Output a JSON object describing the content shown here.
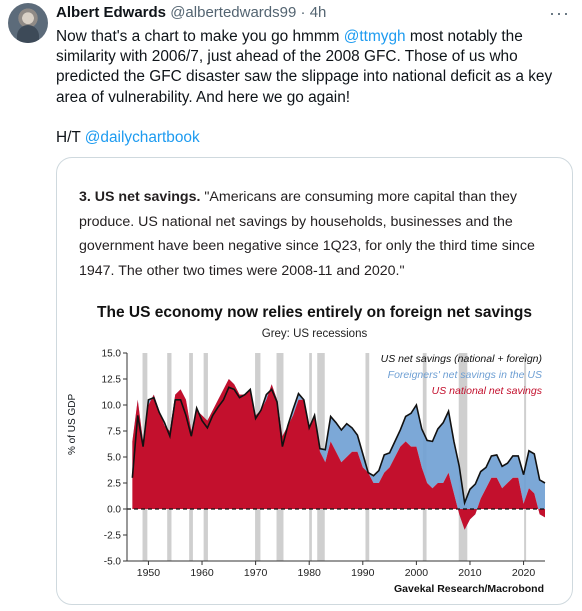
{
  "tweet": {
    "name": "Albert Edwards",
    "handle": "@albertedwards99",
    "separator": "·",
    "time": "4h",
    "more_icon": "more-icon",
    "text_before": "Now that's a chart to make you go hmmm ",
    "mention": "@ttmygh",
    "text_after": " most notably the similarity with 2006/7, just ahead of the 2008 GFC. Those of us who predicted the GFC disaster saw the slippage into national deficit as a key area of vulnerability. And here we go again!",
    "ht_prefix": "H/T ",
    "ht_mention": "@dailychartbook"
  },
  "card": {
    "caption_bold": "3. US net savings.",
    "caption_text": " \"Americans are consuming more capital than they produce. US national net savings by households, businesses and the government have been negative since 1Q23, for only the third time since 1947. The other two times were 2008-11 and 2020.\""
  },
  "chart_data": {
    "type": "area",
    "title": "The US economy now relies entirely on foreign net savings",
    "subtitle": "Grey: US recessions",
    "ylabel": "% of US GDP",
    "ylim": [
      -5,
      15
    ],
    "yticks": [
      "15.0",
      "12.5",
      "10.0",
      "7.5",
      "5.0",
      "2.5",
      "0.0",
      "-2.5",
      "-5.0"
    ],
    "xticks": [
      "1950",
      "1960",
      "1970",
      "1980",
      "1990",
      "2000",
      "2010",
      "2020"
    ],
    "xlim": [
      1946,
      2024
    ],
    "legend": [
      "US net savings (national + foreign)",
      "Foreigners' net savings in the US",
      "US national net savings"
    ],
    "colors": {
      "total": "#111111",
      "foreign": "#6e9fd3",
      "national": "#c3102d",
      "recession": "#cfcfcf"
    },
    "recessions": [
      [
        1948.9,
        1949.8
      ],
      [
        1953.5,
        1954.3
      ],
      [
        1957.6,
        1958.3
      ],
      [
        1960.3,
        1961.1
      ],
      [
        1969.9,
        1970.9
      ],
      [
        1973.9,
        1975.2
      ],
      [
        1980.0,
        1980.5
      ],
      [
        1981.5,
        1982.9
      ],
      [
        1990.5,
        1991.2
      ],
      [
        2001.2,
        2001.9
      ],
      [
        2007.9,
        2009.5
      ],
      [
        2020.1,
        2020.4
      ]
    ],
    "x": [
      1947,
      1948,
      1949,
      1950,
      1951,
      1952,
      1953,
      1954,
      1955,
      1956,
      1957,
      1958,
      1959,
      1960,
      1961,
      1962,
      1963,
      1964,
      1965,
      1966,
      1967,
      1968,
      1969,
      1970,
      1971,
      1972,
      1973,
      1974,
      1975,
      1976,
      1977,
      1978,
      1979,
      1980,
      1981,
      1982,
      1983,
      1984,
      1985,
      1986,
      1987,
      1988,
      1989,
      1990,
      1991,
      1992,
      1993,
      1994,
      1995,
      1996,
      1997,
      1998,
      1999,
      2000,
      2001,
      2002,
      2003,
      2004,
      2005,
      2006,
      2007,
      2008,
      2009,
      2010,
      2011,
      2012,
      2013,
      2014,
      2015,
      2016,
      2017,
      2018,
      2019,
      2020,
      2021,
      2022,
      2023,
      2024
    ],
    "national": [
      6.5,
      10.5,
      6.5,
      10.0,
      11.0,
      9.5,
      8.0,
      7.5,
      11.0,
      11.5,
      10.5,
      7.5,
      9.5,
      9.0,
      8.5,
      9.5,
      10.5,
      11.5,
      12.5,
      12.0,
      11.0,
      11.0,
      11.5,
      9.0,
      9.5,
      10.5,
      12.0,
      10.5,
      7.0,
      8.0,
      9.0,
      10.5,
      10.5,
      8.0,
      9.0,
      5.5,
      4.5,
      6.5,
      5.5,
      4.5,
      5.0,
      5.5,
      5.5,
      4.0,
      3.5,
      2.5,
      2.5,
      3.5,
      4.0,
      5.0,
      6.0,
      6.5,
      6.0,
      6.0,
      4.0,
      2.5,
      2.0,
      2.5,
      2.5,
      3.5,
      1.5,
      -0.5,
      -2.0,
      -1.0,
      -0.5,
      1.0,
      2.0,
      3.0,
      3.0,
      2.0,
      2.5,
      3.0,
      3.0,
      0.5,
      2.0,
      1.5,
      -0.5,
      -0.8
    ],
    "foreign": [
      -3.5,
      -1.5,
      -0.5,
      0.5,
      -0.3,
      -0.2,
      0.3,
      -0.5,
      -0.5,
      -1.0,
      -1.5,
      -0.5,
      0.2,
      -0.5,
      -0.7,
      -0.5,
      -0.7,
      -1.0,
      -0.8,
      -0.5,
      -0.3,
      0.0,
      0.0,
      -0.3,
      0.0,
      0.5,
      -0.5,
      -0.2,
      -1.0,
      0.0,
      0.6,
      0.6,
      0.0,
      -0.2,
      0.0,
      0.3,
      1.2,
      2.4,
      2.8,
      3.1,
      3.2,
      2.3,
      1.6,
      1.3,
      0.0,
      0.7,
      1.2,
      1.7,
      1.4,
      1.5,
      1.6,
      2.4,
      3.2,
      4.0,
      3.7,
      4.1,
      4.5,
      5.2,
      5.8,
      5.9,
      5.0,
      4.6,
      2.6,
      2.9,
      2.9,
      2.6,
      2.0,
      2.1,
      2.2,
      2.1,
      1.9,
      2.1,
      2.1,
      2.8,
      3.6,
      3.8,
      3.3,
      3.3
    ],
    "total": [
      3.0,
      9.0,
      6.0,
      10.5,
      10.7,
      9.3,
      8.3,
      7.0,
      10.5,
      10.5,
      9.0,
      7.0,
      9.7,
      8.5,
      7.8,
      9.0,
      9.8,
      10.5,
      11.7,
      11.5,
      10.7,
      11.0,
      11.5,
      8.7,
      9.5,
      11.0,
      11.5,
      10.3,
      6.0,
      8.0,
      9.6,
      11.1,
      10.5,
      7.8,
      9.0,
      5.8,
      5.7,
      8.9,
      8.3,
      7.6,
      8.2,
      7.8,
      7.1,
      5.3,
      3.5,
      3.2,
      3.7,
      5.2,
      5.4,
      6.5,
      7.6,
      8.9,
      9.2,
      10.0,
      7.7,
      6.6,
      6.5,
      7.7,
      8.3,
      9.4,
      6.5,
      4.1,
      0.6,
      1.9,
      2.4,
      3.6,
      4.0,
      5.1,
      5.2,
      4.1,
      4.4,
      5.1,
      5.1,
      3.3,
      5.6,
      5.3,
      2.8,
      2.5
    ]
  },
  "credit": "Gavekal Research/Macrobond"
}
